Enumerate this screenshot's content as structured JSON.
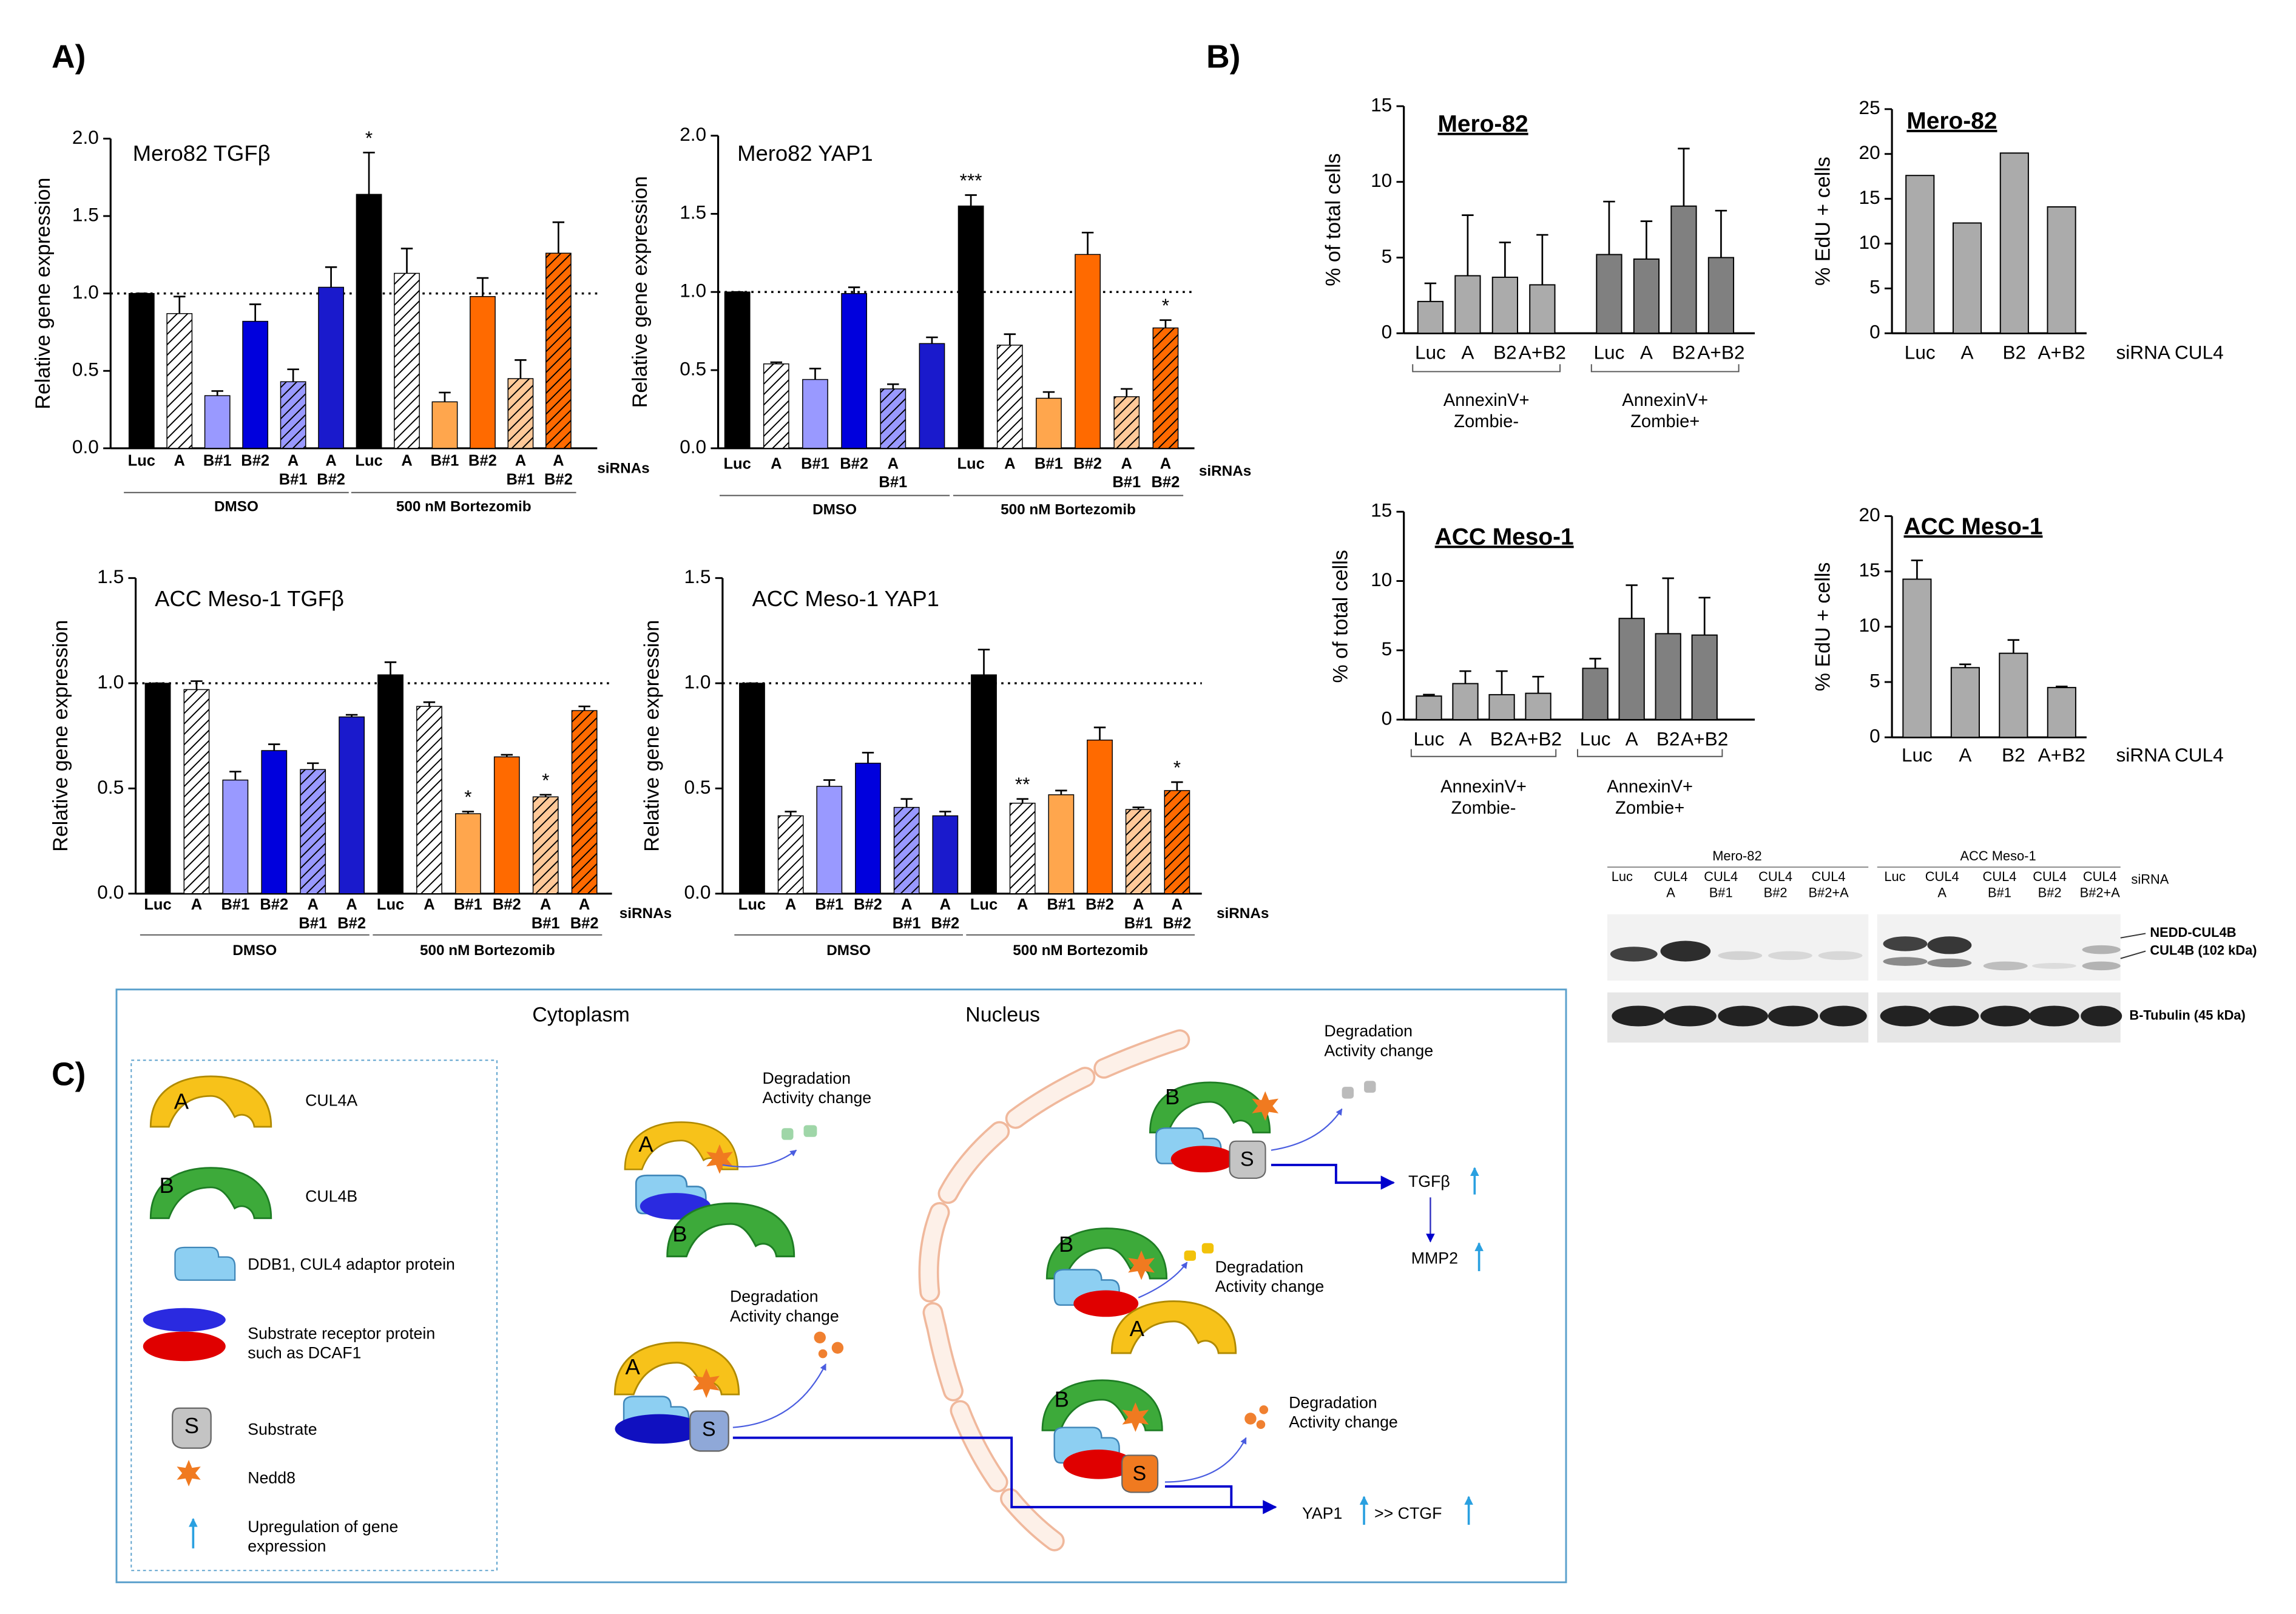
{
  "panels": [
    "A)",
    "B)"
  ],
  "chart_data": [
    {
      "type": "bar",
      "title": "Mero82 TGFβ",
      "ylabel": "Relative gene expression",
      "xlabel": "siRNAs",
      "categories": [
        "Luc",
        "A",
        "B#1",
        "B#2",
        "A\nB#1",
        "A\nB#2",
        "Luc",
        "A",
        "B#1",
        "B#2",
        "A\nB#1",
        "A\nB#2"
      ],
      "values": [
        1.0,
        0.87,
        0.34,
        0.82,
        0.43,
        1.04,
        1.64,
        1.13,
        0.3,
        0.98,
        0.45,
        1.26
      ],
      "errors": [
        0,
        0.11,
        0.03,
        0.11,
        0.08,
        0.13,
        0.27,
        0.16,
        0.06,
        0.12,
        0.12,
        0.2
      ],
      "stars": [
        null,
        null,
        null,
        null,
        null,
        null,
        "*",
        null,
        null,
        null,
        null,
        null
      ],
      "colors": [
        "#000000",
        "#ffffff",
        "#9999ff",
        "#0000dd",
        "#9999ff",
        "#1a1acc",
        "#000000",
        "#ffffff",
        "#ffa64d",
        "#ff6a00",
        "#ffc999",
        "#ff6a00"
      ],
      "hatched": [
        false,
        true,
        false,
        false,
        true,
        false,
        false,
        true,
        false,
        false,
        true,
        true
      ],
      "groups": [
        "DMSO",
        "500 nM Bortezomib"
      ],
      "reference_line": 1.0,
      "ylim": [
        0,
        2.0
      ],
      "yticks": [
        {
          "value": 0,
          "label": "0.0"
        },
        0.5,
        {
          "value": 1.0,
          "label": "1.0"
        },
        1.5,
        {
          "value": 2.0,
          "label": "2.0"
        }
      ]
    },
    {
      "type": "bar",
      "title": "Mero82 YAP1",
      "ylabel": "Relative gene expression",
      "xlabel": "siRNAs",
      "categories": [
        "Luc",
        "A",
        "B#1",
        "B#2",
        "A\nB#1",
        null,
        "Luc",
        "A",
        "B#1",
        "B#2",
        "A\nB#1",
        "A\nB#2"
      ],
      "values": [
        1.0,
        0.54,
        0.44,
        0.99,
        0.38,
        0.67,
        1.55,
        0.66,
        0.32,
        1.24,
        0.33,
        0.77
      ],
      "errors": [
        0,
        0.01,
        0.07,
        0.04,
        0.03,
        0.04,
        0.07,
        0.07,
        0.04,
        0.14,
        0.05,
        0.05
      ],
      "stars": [
        null,
        null,
        null,
        null,
        null,
        null,
        "***",
        null,
        null,
        null,
        null,
        "*"
      ],
      "colors": [
        "#000000",
        "#ffffff",
        "#9999ff",
        "#0000dd",
        "#9999ff",
        "#1a1acc",
        "#000000",
        "#ffffff",
        "#ffa64d",
        "#ff6a00",
        "#ffc999",
        "#ff6a00"
      ],
      "hatched": [
        false,
        true,
        false,
        false,
        true,
        false,
        false,
        true,
        false,
        false,
        true,
        true
      ],
      "groups": [
        "DMSO",
        "500 nM Bortezomib"
      ],
      "reference_line": 1.0,
      "ylim": [
        0,
        2.0
      ],
      "yticks": [
        {
          "value": 0,
          "label": "0.0"
        },
        0.5,
        {
          "value": 1.0,
          "label": "1.0"
        },
        1.5,
        {
          "value": 2.0,
          "label": "2.0"
        }
      ]
    },
    {
      "type": "bar",
      "title": "ACC  Meso-1 TGFβ",
      "ylabel": "Relative gene expression",
      "xlabel": "siRNAs",
      "categories": [
        "Luc",
        "A",
        "B#1",
        "B#2",
        "A\nB#1",
        "A\nB#2",
        "Luc",
        "A",
        "B#1",
        "B#2",
        "A\nB#1",
        "A\nB#2"
      ],
      "values": [
        1.0,
        0.97,
        0.54,
        0.68,
        0.59,
        0.84,
        1.04,
        0.89,
        0.38,
        0.65,
        0.46,
        0.87
      ],
      "errors": [
        0,
        0.04,
        0.04,
        0.03,
        0.03,
        0.01,
        0.06,
        0.02,
        0.01,
        0.01,
        0.01,
        0.02
      ],
      "stars": [
        null,
        null,
        null,
        null,
        null,
        null,
        null,
        null,
        "*",
        null,
        "*",
        null
      ],
      "colors": [
        "#000000",
        "#ffffff",
        "#9999ff",
        "#0000dd",
        "#9999ff",
        "#1a1acc",
        "#000000",
        "#ffffff",
        "#ffa64d",
        "#ff6a00",
        "#ffc999",
        "#ff6a00"
      ],
      "hatched": [
        false,
        true,
        false,
        false,
        true,
        false,
        false,
        true,
        false,
        false,
        true,
        true
      ],
      "groups": [
        "DMSO",
        "500 nM Bortezomib"
      ],
      "reference_line": 1.0,
      "ylim": [
        0,
        1.5
      ],
      "yticks": [
        {
          "value": 0,
          "label": "0.0"
        },
        0.5,
        {
          "value": 1.0,
          "label": "1.0"
        },
        1.5
      ]
    },
    {
      "type": "bar",
      "title": "ACC  Meso-1 YAP1",
      "ylabel": "Relative gene expression",
      "xlabel": "siRNAs",
      "categories": [
        "Luc",
        "A",
        "B#1",
        "B#2",
        "A\nB#1",
        "A\nB#2",
        "Luc",
        "A",
        "B#1",
        "B#2",
        "A\nB#1",
        "A\nB#2"
      ],
      "values": [
        1.0,
        0.37,
        0.51,
        0.62,
        0.41,
        0.37,
        1.04,
        0.43,
        0.47,
        0.73,
        0.4,
        0.49
      ],
      "errors": [
        0,
        0.02,
        0.03,
        0.05,
        0.04,
        0.02,
        0.12,
        0.02,
        0.02,
        0.06,
        0.01,
        0.04
      ],
      "stars": [
        null,
        null,
        null,
        null,
        null,
        null,
        null,
        "**",
        null,
        null,
        null,
        "*"
      ],
      "colors": [
        "#000000",
        "#ffffff",
        "#9999ff",
        "#0000dd",
        "#9999ff",
        "#1a1acc",
        "#000000",
        "#ffffff",
        "#ffa64d",
        "#ff6a00",
        "#ffc999",
        "#ff6a00"
      ],
      "hatched": [
        false,
        true,
        false,
        false,
        true,
        false,
        false,
        true,
        false,
        false,
        true,
        true
      ],
      "groups": [
        "DMSO",
        "500 nM Bortezomib"
      ],
      "reference_line": 1.0,
      "ylim": [
        0,
        1.5
      ],
      "yticks": [
        {
          "value": 0,
          "label": "0.0"
        },
        0.5,
        {
          "value": 1.0,
          "label": "1.0"
        },
        1.5
      ]
    },
    {
      "type": "bar",
      "title": "Mero-82",
      "ylabel": "% of total cells",
      "categories": [
        "Luc",
        "A",
        "B2",
        "A+B2",
        "Luc",
        "A",
        "B2",
        "A+B2"
      ],
      "values": [
        2.1,
        3.8,
        3.7,
        3.2,
        5.2,
        4.9,
        8.4,
        5.0
      ],
      "errors": [
        1.2,
        4.0,
        2.3,
        3.3,
        3.5,
        2.5,
        3.8,
        3.1
      ],
      "colors": [
        "#ababab",
        "#ababab",
        "#ababab",
        "#ababab",
        "#808080",
        "#808080",
        "#808080",
        "#808080"
      ],
      "groups": [
        "AnnexinV+\nZombie-",
        "AnnexinV+\nZombie+"
      ],
      "ylim": [
        0,
        15
      ],
      "yticks": [
        0,
        5,
        10,
        15
      ]
    },
    {
      "type": "bar",
      "title": "Mero-82",
      "ylabel": "% EdU + cells",
      "xlabel": "siRNA CUL4",
      "categories": [
        "Luc",
        "A",
        "B2",
        "A+B2"
      ],
      "values": [
        17.6,
        12.3,
        20.1,
        14.1
      ],
      "colors": [
        "#ababab",
        "#ababab",
        "#ababab",
        "#ababab"
      ],
      "ylim": [
        0,
        25
      ],
      "yticks": [
        0,
        5,
        10,
        15,
        20,
        25
      ]
    },
    {
      "type": "bar",
      "title": "ACC Meso-1",
      "ylabel": "% of total cells",
      "categories": [
        "Luc",
        "A",
        "B2",
        "A+B2",
        "Luc",
        "A",
        "B2",
        "A+B2"
      ],
      "values": [
        1.7,
        2.6,
        1.8,
        1.9,
        3.7,
        7.3,
        6.2,
        6.1
      ],
      "errors": [
        0.1,
        0.9,
        1.7,
        1.2,
        0.7,
        2.4,
        4.0,
        2.7
      ],
      "colors": [
        "#ababab",
        "#ababab",
        "#ababab",
        "#ababab",
        "#808080",
        "#808080",
        "#808080",
        "#808080"
      ],
      "groups": [
        "AnnexinV+\nZombie-",
        "AnnexinV+\nZombie+"
      ],
      "ylim": [
        0,
        15
      ],
      "yticks": [
        0,
        5,
        10,
        15
      ]
    },
    {
      "type": "bar",
      "title": "ACC Meso-1",
      "ylabel": "% EdU + cells",
      "xlabel": "siRNA CUL4",
      "categories": [
        "Luc",
        "A",
        "B2",
        "A+B2"
      ],
      "values": [
        14.3,
        6.3,
        7.6,
        4.5
      ],
      "errors": [
        1.7,
        0.3,
        1.2,
        0.1
      ],
      "colors": [
        "#ababab",
        "#ababab",
        "#ababab",
        "#ababab"
      ],
      "ylim": [
        0,
        20
      ],
      "yticks": [
        0,
        5,
        10,
        15,
        20
      ]
    }
  ],
  "blot": {
    "samples": [
      "Mero-82",
      "ACC Meso-1"
    ],
    "siRNA": "siRNA",
    "lanes": [
      [
        "Luc",
        "CUL4\nA",
        "CUL4\nB#1",
        "CUL4\nB#2",
        "CUL4\nB#2+A"
      ],
      [
        "Luc",
        "CUL4\nA",
        "CUL4\nB#1",
        "CUL4\nB#2",
        "CUL4\nB#2+A"
      ]
    ],
    "bands": [
      "NEDD-CUL4B",
      "CUL4B (102 kDa)",
      "B-Tubulin (45 kDa)"
    ]
  },
  "diagram": {
    "label": "C)",
    "regions": [
      "Cytoplasm",
      "Nucleus"
    ],
    "legend": [
      "CUL4A",
      "CUL4B",
      "DDB1, CUL4 adaptor protein",
      "Substrate receptor protein\nsuch as DCAF1",
      "Substrate",
      "Nedd8",
      "Upregulation of gene\nexpression"
    ],
    "letters": [
      "A",
      "B",
      "S"
    ],
    "degradation": [
      "Degradation\nActivity change",
      "Degradation\nActivity change",
      "Degradation\nActivity change",
      "Degradation\nActivity change",
      "Degradation\nActivity change"
    ],
    "genes": [
      "TGFβ",
      "MMP2",
      "YAP1",
      ">> CTGF"
    ]
  }
}
